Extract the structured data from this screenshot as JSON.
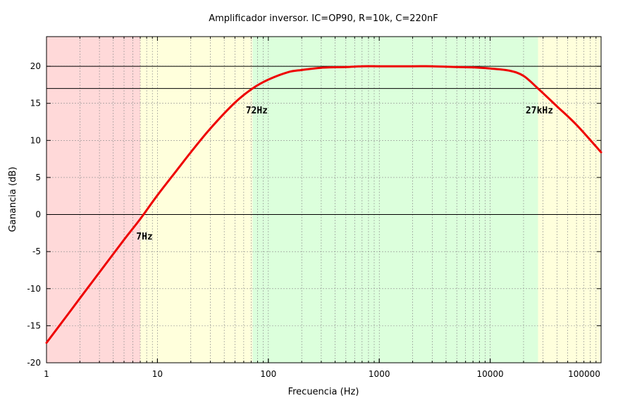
{
  "chart_data": {
    "type": "line",
    "title": "Amplificador inversor. IC=OP90, R=10k, C=220nF",
    "xlabel": "Frecuencia (Hz)",
    "ylabel": "Ganancia (dB)",
    "xscale": "log",
    "xlim": [
      1,
      100000
    ],
    "ylim": [
      -20,
      24
    ],
    "x_ticks": [
      1,
      10,
      100,
      1000,
      10000,
      100000
    ],
    "x_tick_labels": [
      "1",
      "10",
      "100",
      "1000",
      "10000",
      "100000"
    ],
    "y_ticks": [
      -20,
      -15,
      -10,
      -5,
      0,
      5,
      10,
      15,
      20
    ],
    "y_tick_labels": [
      "-20",
      "-15",
      "-10",
      "-5",
      "0",
      "5",
      "10",
      "15",
      "20"
    ],
    "grid": true,
    "reference_lines": [
      20,
      17,
      0
    ],
    "bands": [
      {
        "from": 1,
        "to": 7,
        "color": "#ffd9d9"
      },
      {
        "from": 7,
        "to": 72,
        "color": "#ffffdc"
      },
      {
        "from": 72,
        "to": 27000,
        "color": "#dcffdc"
      },
      {
        "from": 27000,
        "to": 100000,
        "color": "#ffffdc"
      }
    ],
    "series": [
      {
        "color": "#ee0000",
        "x": [
          1,
          1.5,
          2,
          3,
          5,
          7,
          10,
          15,
          20,
          30,
          50,
          72,
          100,
          150,
          200,
          300,
          500,
          700,
          1000,
          2000,
          3000,
          5000,
          7000,
          10000,
          15000,
          20000,
          27000,
          40000,
          60000,
          100000
        ],
        "y": [
          -17.3,
          -13.8,
          -11.3,
          -7.8,
          -3.4,
          -0.6,
          2.6,
          6.0,
          8.4,
          11.6,
          15.1,
          17.0,
          18.2,
          19.2,
          19.5,
          19.8,
          19.9,
          20.0,
          20.0,
          20.0,
          20.0,
          19.9,
          19.85,
          19.7,
          19.4,
          18.7,
          17.0,
          14.6,
          12.1,
          8.4
        ]
      }
    ],
    "annotations": [
      {
        "text": "7Hz",
        "x": 7,
        "y": -3
      },
      {
        "text": "72Hz",
        "x": 72,
        "y": 14
      },
      {
        "text": "27kHz",
        "x": 27000,
        "y": 14
      }
    ]
  }
}
